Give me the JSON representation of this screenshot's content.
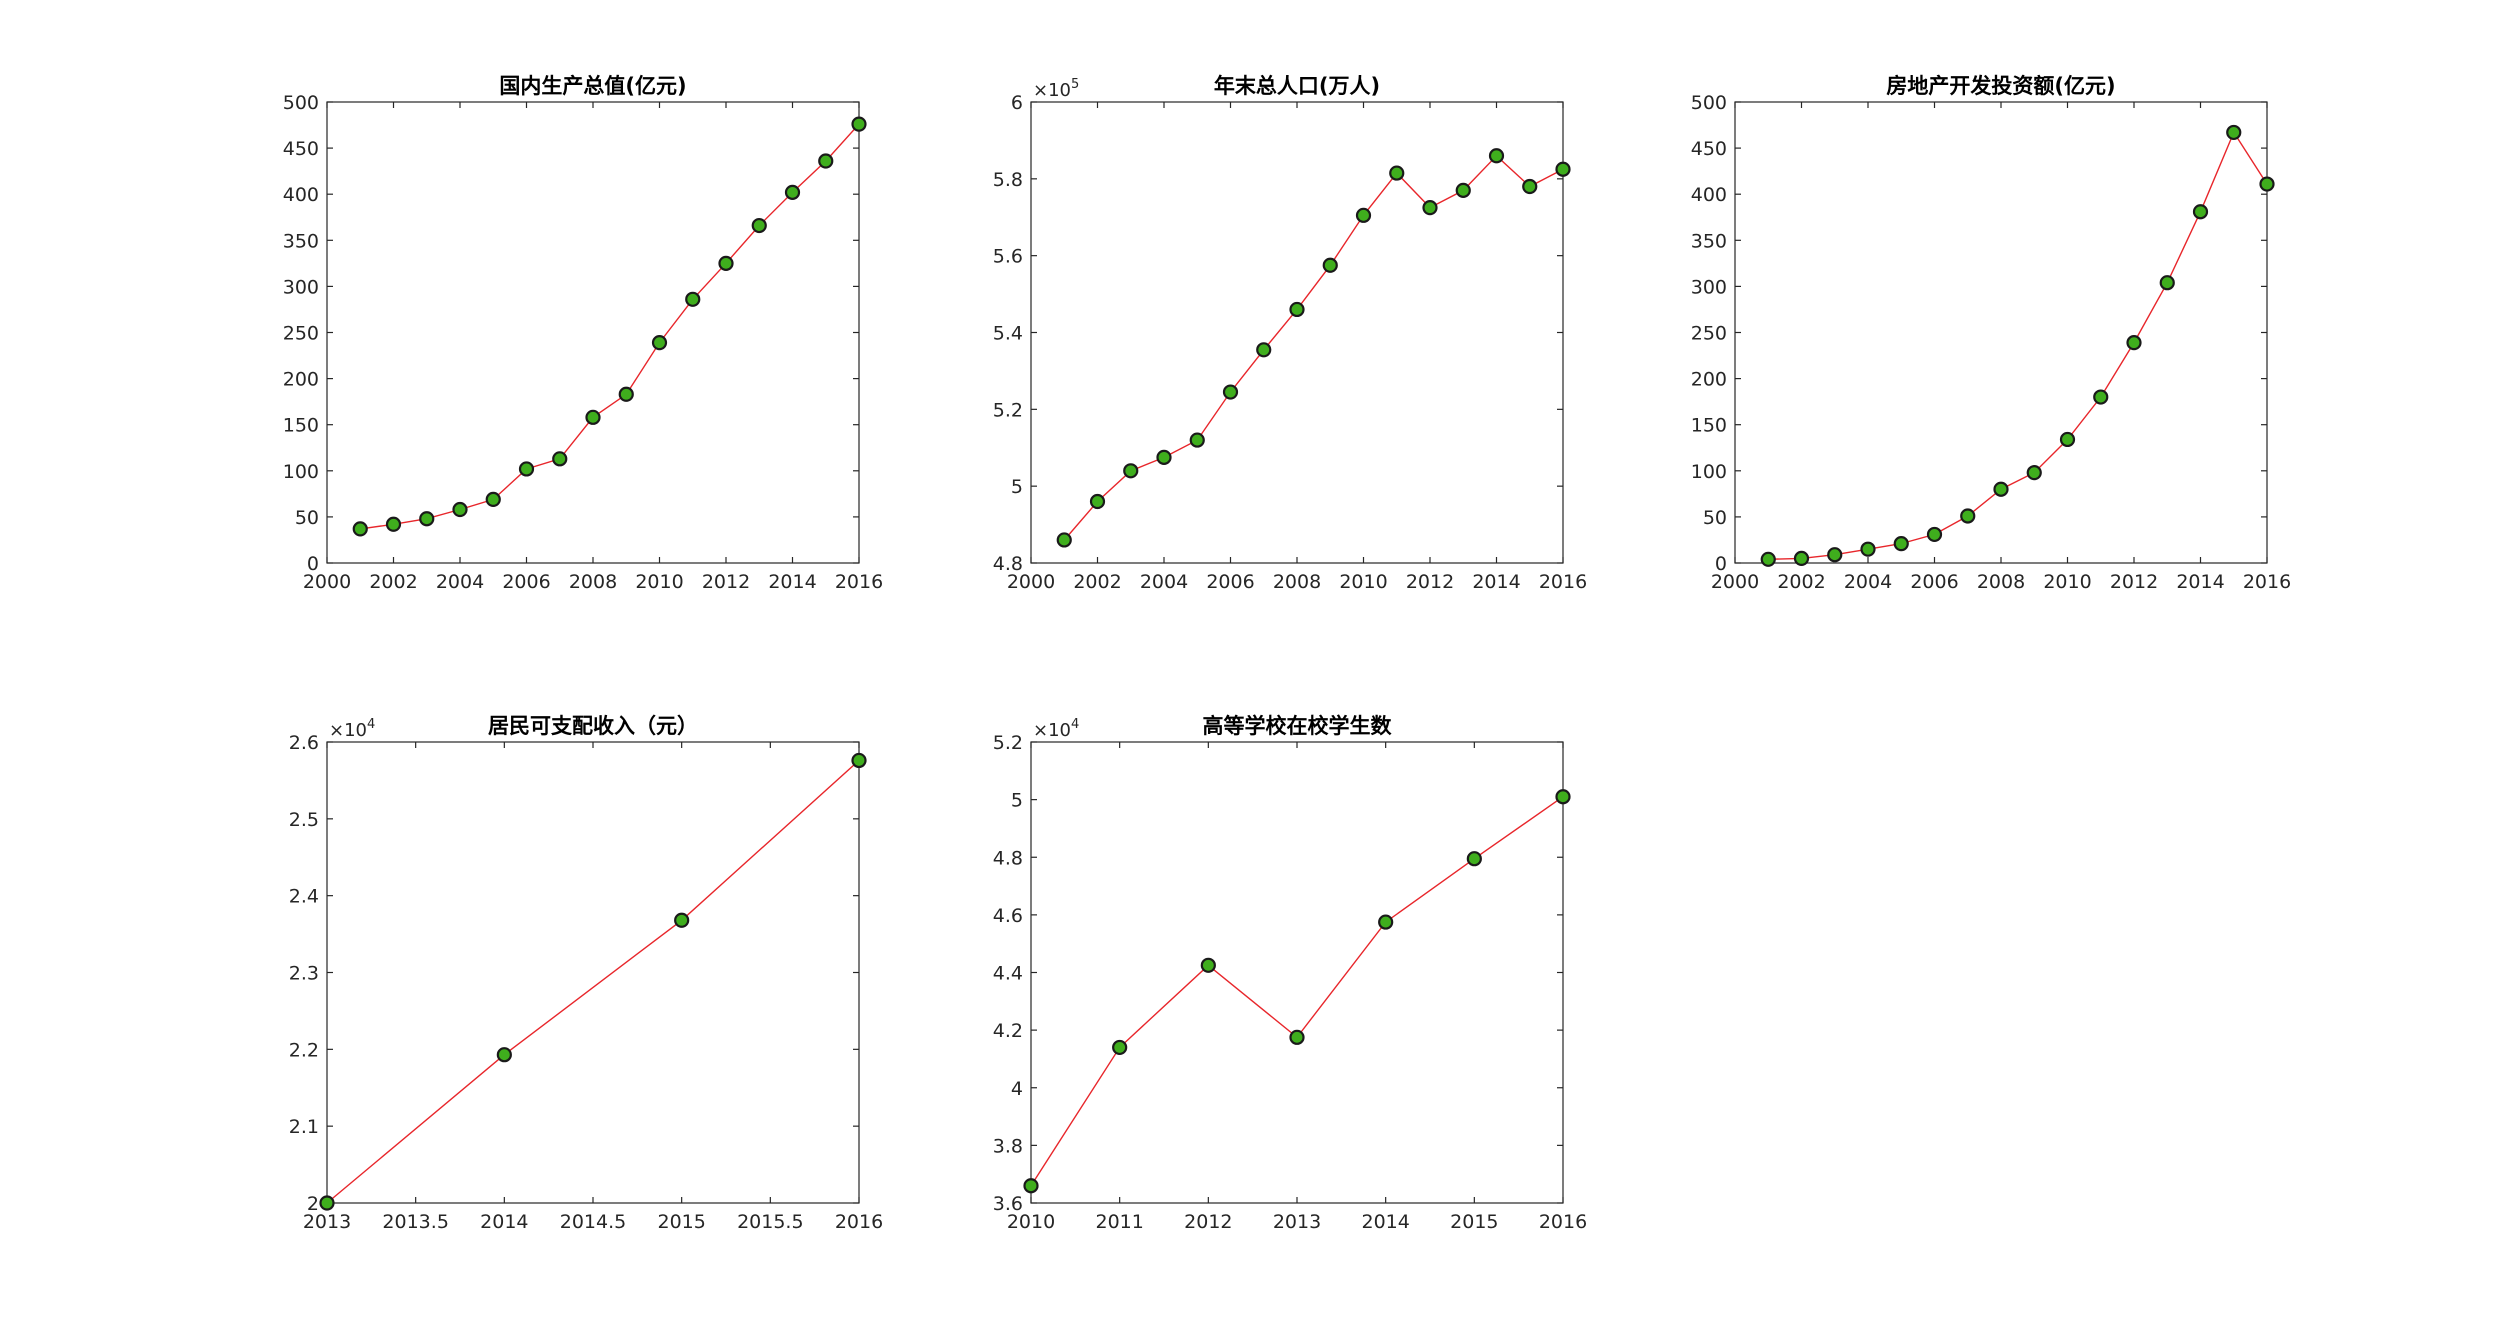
{
  "colors": {
    "line": "#e8262b",
    "marker_fill": "#3fae1d",
    "marker_edge": "#1a1a1a",
    "axes": "#262626",
    "background": "#ffffff"
  },
  "chart_data": [
    {
      "type": "line",
      "title": "国内生产总值(亿元)",
      "x": [
        2001,
        2002,
        2003,
        2004,
        2005,
        2006,
        2007,
        2008,
        2009,
        2010,
        2011,
        2012,
        2013,
        2014,
        2015,
        2016
      ],
      "y": [
        37,
        42,
        48,
        58,
        69,
        102,
        113,
        158,
        183,
        239,
        286,
        325,
        366,
        402,
        436,
        476
      ],
      "xlim": [
        2000,
        2016
      ],
      "ylim": [
        0,
        500
      ],
      "xticks": [
        2000,
        2002,
        2004,
        2006,
        2008,
        2010,
        2012,
        2014,
        2016
      ],
      "yticks": [
        0,
        50,
        100,
        150,
        200,
        250,
        300,
        350,
        400,
        450,
        500
      ],
      "xtick_labels": [
        "2000",
        "2002",
        "2004",
        "2006",
        "2008",
        "2010",
        "2012",
        "2014",
        "2016"
      ],
      "ytick_labels": [
        "0",
        "50",
        "100",
        "150",
        "200",
        "250",
        "300",
        "350",
        "400",
        "450",
        "500"
      ],
      "exponent_label": {
        "base": "",
        "power": ""
      },
      "grid": false,
      "legend": "none"
    },
    {
      "type": "line",
      "title": "年末总人口(万人)",
      "x": [
        2001,
        2002,
        2003,
        2004,
        2005,
        2006,
        2007,
        2008,
        2009,
        2010,
        2011,
        2012,
        2013,
        2014,
        2015,
        2016
      ],
      "y": [
        486000,
        496000,
        504000,
        507500,
        512000,
        524500,
        535500,
        546000,
        557500,
        570500,
        581500,
        572500,
        577000,
        586000,
        578000,
        582500
      ],
      "xlim": [
        2000,
        2016
      ],
      "ylim": [
        480000,
        600000
      ],
      "xticks": [
        2000,
        2002,
        2004,
        2006,
        2008,
        2010,
        2012,
        2014,
        2016
      ],
      "yticks": [
        480000,
        500000,
        520000,
        540000,
        560000,
        580000,
        600000
      ],
      "xtick_labels": [
        "2000",
        "2002",
        "2004",
        "2006",
        "2008",
        "2010",
        "2012",
        "2014",
        "2016"
      ],
      "ytick_labels": [
        "4.8",
        "5",
        "5.2",
        "5.4",
        "5.6",
        "5.8",
        "6"
      ],
      "exponent_label": {
        "base": "×10",
        "power": "5"
      },
      "grid": false,
      "legend": "none"
    },
    {
      "type": "line",
      "title": "房地产开发投资额(亿元)",
      "x": [
        2001,
        2002,
        2003,
        2004,
        2005,
        2006,
        2007,
        2008,
        2009,
        2010,
        2011,
        2012,
        2013,
        2014,
        2015,
        2016
      ],
      "y": [
        4,
        5,
        9,
        15,
        21,
        31,
        51,
        80,
        98,
        134,
        180,
        239,
        304,
        381,
        467,
        411
      ],
      "xlim": [
        2000,
        2016
      ],
      "ylim": [
        0,
        500
      ],
      "xticks": [
        2000,
        2002,
        2004,
        2006,
        2008,
        2010,
        2012,
        2014,
        2016
      ],
      "yticks": [
        0,
        50,
        100,
        150,
        200,
        250,
        300,
        350,
        400,
        450,
        500
      ],
      "xtick_labels": [
        "2000",
        "2002",
        "2004",
        "2006",
        "2008",
        "2010",
        "2012",
        "2014",
        "2016"
      ],
      "ytick_labels": [
        "0",
        "50",
        "100",
        "150",
        "200",
        "250",
        "300",
        "350",
        "400",
        "450",
        "500"
      ],
      "exponent_label": {
        "base": "",
        "power": ""
      },
      "grid": false,
      "legend": "none"
    },
    {
      "type": "line",
      "title": "居民可支配收入（元）",
      "x": [
        2013,
        2014,
        2015,
        2016
      ],
      "y": [
        20000,
        21930,
        23680,
        25760
      ],
      "xlim": [
        2013,
        2016
      ],
      "ylim": [
        20000,
        26000
      ],
      "xticks": [
        2013,
        2013.5,
        2014,
        2014.5,
        2015,
        2015.5,
        2016
      ],
      "yticks": [
        20000,
        21000,
        22000,
        23000,
        24000,
        25000,
        26000
      ],
      "xtick_labels": [
        "2013",
        "2013.5",
        "2014",
        "2014.5",
        "2015",
        "2015.5",
        "2016"
      ],
      "ytick_labels": [
        "2",
        "2.1",
        "2.2",
        "2.3",
        "2.4",
        "2.5",
        "2.6"
      ],
      "exponent_label": {
        "base": "×10",
        "power": "4"
      },
      "grid": false,
      "legend": "none"
    },
    {
      "type": "line",
      "title": "高等学校在校学生数",
      "x": [
        2010,
        2011,
        2012,
        2013,
        2014,
        2015,
        2016
      ],
      "y": [
        36600,
        41400,
        44250,
        41750,
        45750,
        47950,
        50100
      ],
      "xlim": [
        2010,
        2016
      ],
      "ylim": [
        36000,
        52000
      ],
      "xticks": [
        2010,
        2011,
        2012,
        2013,
        2014,
        2015,
        2016
      ],
      "yticks": [
        36000,
        38000,
        40000,
        42000,
        44000,
        46000,
        48000,
        50000,
        52000
      ],
      "xtick_labels": [
        "2010",
        "2011",
        "2012",
        "2013",
        "2014",
        "2015",
        "2016"
      ],
      "ytick_labels": [
        "3.6",
        "3.8",
        "4",
        "4.2",
        "4.4",
        "4.6",
        "4.8",
        "5",
        "5.2"
      ],
      "exponent_label": {
        "base": "×10",
        "power": "4"
      },
      "grid": false,
      "legend": "none"
    }
  ]
}
